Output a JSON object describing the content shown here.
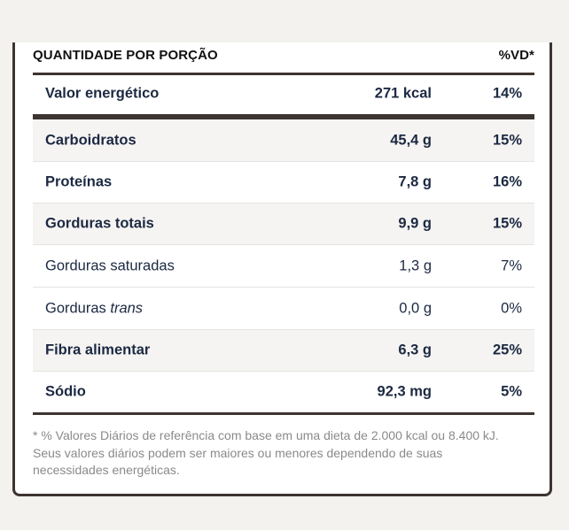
{
  "header": {
    "left": "QUANTIDADE POR PORÇÃO",
    "right": "%VD*"
  },
  "rows": [
    {
      "label": "Valor energético",
      "amount": "271 kcal",
      "pct": "14%"
    },
    {
      "label": "Carboidratos",
      "amount": "45,4 g",
      "pct": "15%"
    },
    {
      "label": "Proteínas",
      "amount": "7,8 g",
      "pct": "16%"
    },
    {
      "label": "Gorduras totais",
      "amount": "9,9 g",
      "pct": "15%"
    },
    {
      "label": "Gorduras saturadas",
      "amount": "1,3 g",
      "pct": "7%"
    },
    {
      "label_prefix": "Gorduras ",
      "label_italic": "trans",
      "amount": "0,0 g",
      "pct": "0%"
    },
    {
      "label": "Fibra alimentar",
      "amount": "6,3 g",
      "pct": "25%"
    },
    {
      "label": "Sódio",
      "amount": "92,3 mg",
      "pct": "5%"
    }
  ],
  "footnote": {
    "line1": "* % Valores Diários de referência com base em uma dieta de 2.000 kcal ou 8.400 kJ.",
    "line2": "Seus valores diários podem ser maiores ou menores dependendo de suas",
    "line3": "necessidades energéticas."
  }
}
